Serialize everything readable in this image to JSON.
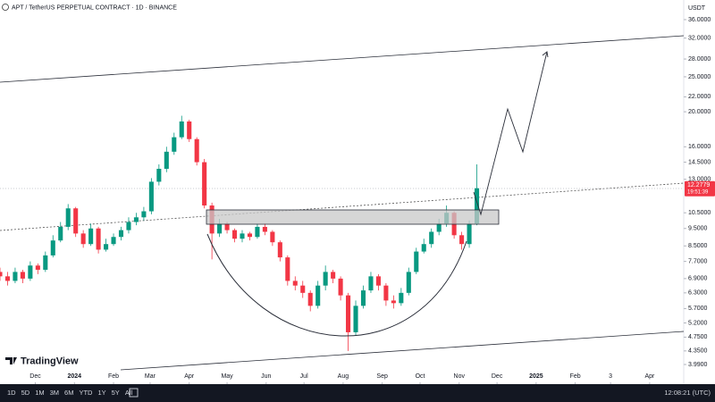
{
  "chart_data": {
    "type": "candlestick",
    "title": "APT / TetherUS PERPETUAL CONTRACT · 1D · BINANCE",
    "ylabel": "USDT",
    "log_scale": true,
    "grid": false,
    "up_color": "#089981",
    "down_color": "#f23645",
    "xlim": [
      -28,
      514
    ],
    "ylim": [
      3.56,
      40.8
    ],
    "xticks": [
      {
        "value": 0,
        "label": "Dec"
      },
      {
        "value": 31,
        "label": "2024"
      },
      {
        "value": 62,
        "label": "Feb"
      },
      {
        "value": 91,
        "label": "Mar"
      },
      {
        "value": 122,
        "label": "Apr"
      },
      {
        "value": 152,
        "label": "May"
      },
      {
        "value": 183,
        "label": "Jun"
      },
      {
        "value": 213,
        "label": "Jul"
      },
      {
        "value": 244,
        "label": "Aug"
      },
      {
        "value": 275,
        "label": "Sep"
      },
      {
        "value": 305,
        "label": "Oct"
      },
      {
        "value": 336,
        "label": "Nov"
      },
      {
        "value": 366,
        "label": "Dec"
      },
      {
        "value": 397,
        "label": "2025"
      },
      {
        "value": 428,
        "label": "Feb"
      },
      {
        "value": 456,
        "label": "3"
      },
      {
        "value": 487,
        "label": "Apr"
      }
    ],
    "yticks": [
      {
        "value": 3.99,
        "label": "3.9900"
      },
      {
        "value": 4.35,
        "label": "4.3500"
      },
      {
        "value": 4.75,
        "label": "4.7500"
      },
      {
        "value": 5.2,
        "label": "5.2000"
      },
      {
        "value": 5.7,
        "label": "5.7000"
      },
      {
        "value": 6.3,
        "label": "6.3000"
      },
      {
        "value": 6.9,
        "label": "6.9000"
      },
      {
        "value": 7.7,
        "label": "7.7000"
      },
      {
        "value": 8.5,
        "label": "8.5000"
      },
      {
        "value": 9.5,
        "label": "9.5000"
      },
      {
        "value": 10.5,
        "label": "10.5000"
      },
      {
        "value": 13,
        "label": "13.0000"
      },
      {
        "value": 14.5,
        "label": "14.5000"
      },
      {
        "value": 16,
        "label": "16.0000"
      },
      {
        "value": 20,
        "label": "20.0000"
      },
      {
        "value": 22,
        "label": "22.0000"
      },
      {
        "value": 25,
        "label": "25.0000"
      },
      {
        "value": 28,
        "label": "28.0000"
      },
      {
        "value": 32,
        "label": "32.0000"
      },
      {
        "value": 36,
        "label": "36.0000"
      }
    ],
    "last_price": 12.2779,
    "countdown": "19:51:39",
    "x": [
      -28,
      -22,
      -16,
      -10,
      -4,
      2,
      8,
      14,
      20,
      26,
      32,
      38,
      44,
      50,
      56,
      62,
      68,
      74,
      80,
      86,
      92,
      98,
      104,
      110,
      116,
      122,
      128,
      134,
      140,
      146,
      152,
      158,
      164,
      170,
      176,
      182,
      188,
      194,
      200,
      206,
      212,
      218,
      224,
      230,
      236,
      242,
      248,
      254,
      260,
      266,
      272,
      278,
      284,
      290,
      296,
      302,
      308,
      314,
      320,
      326,
      332,
      338,
      344,
      350
    ],
    "open": [
      7.2,
      7.0,
      6.8,
      7.2,
      6.9,
      7.5,
      7.3,
      8.0,
      8.8,
      9.6,
      10.8,
      9.2,
      8.6,
      9.5,
      8.3,
      8.6,
      9.0,
      9.4,
      9.9,
      10.2,
      10.6,
      12.8,
      13.9,
      15.5,
      17.0,
      18.8,
      16.8,
      14.5,
      11.0,
      9.2,
      9.8,
      9.4,
      8.9,
      9.2,
      9.0,
      9.6,
      9.3,
      8.7,
      7.9,
      6.8,
      6.6,
      6.3,
      5.8,
      6.6,
      7.2,
      6.9,
      6.2,
      4.9,
      5.8,
      6.4,
      7.0,
      6.6,
      6.0,
      5.9,
      6.3,
      7.2,
      8.2,
      8.6,
      9.3,
      9.8,
      10.5,
      9.1,
      8.6,
      9.8
    ],
    "high": [
      7.4,
      7.2,
      7.4,
      7.3,
      7.7,
      7.6,
      8.2,
      9.1,
      9.9,
      11.1,
      10.9,
      9.4,
      9.8,
      9.6,
      8.9,
      9.2,
      9.6,
      10.2,
      10.5,
      10.9,
      13.1,
      14.3,
      16.0,
      17.5,
      19.5,
      19.0,
      17.0,
      14.8,
      11.2,
      10.1,
      9.9,
      9.5,
      9.4,
      9.3,
      9.8,
      9.8,
      9.4,
      8.8,
      8.0,
      7.0,
      6.8,
      6.4,
      6.8,
      7.5,
      7.3,
      7.0,
      6.3,
      6.0,
      6.6,
      7.2,
      7.1,
      6.7,
      6.2,
      6.5,
      7.4,
      8.4,
      8.9,
      9.5,
      10.1,
      11.0,
      10.6,
      9.3,
      10.0,
      14.3
    ],
    "low": [
      6.8,
      6.6,
      6.7,
      6.7,
      6.8,
      7.1,
      7.2,
      7.9,
      8.7,
      9.4,
      9.0,
      8.4,
      8.5,
      8.1,
      8.2,
      8.5,
      8.8,
      9.2,
      9.7,
      10.0,
      10.4,
      12.5,
      13.6,
      15.2,
      16.8,
      16.5,
      14.2,
      10.8,
      7.8,
      9.0,
      9.2,
      8.7,
      8.7,
      8.8,
      8.9,
      9.1,
      8.5,
      7.7,
      6.6,
      6.4,
      6.1,
      5.6,
      5.7,
      6.4,
      6.7,
      6.0,
      4.35,
      4.8,
      5.7,
      6.3,
      6.4,
      5.8,
      5.7,
      5.8,
      6.2,
      7.1,
      8.1,
      8.4,
      9.1,
      9.6,
      8.9,
      8.3,
      8.4,
      9.7
    ],
    "close": [
      7.0,
      6.8,
      7.2,
      6.9,
      7.5,
      7.3,
      8.0,
      8.8,
      9.6,
      10.8,
      9.2,
      8.6,
      9.5,
      8.3,
      8.6,
      9.0,
      9.4,
      9.9,
      10.2,
      10.6,
      12.8,
      13.9,
      15.5,
      17.0,
      18.8,
      16.8,
      14.5,
      11.0,
      9.2,
      9.8,
      9.4,
      8.9,
      9.2,
      9.0,
      9.6,
      9.3,
      8.7,
      7.9,
      6.8,
      6.6,
      6.3,
      5.8,
      6.6,
      7.2,
      6.9,
      6.2,
      4.9,
      5.8,
      6.4,
      7.0,
      6.6,
      6.0,
      5.9,
      6.3,
      7.2,
      8.2,
      8.6,
      9.3,
      9.8,
      10.5,
      9.1,
      8.6,
      9.8,
      12.28
    ]
  },
  "ui": {
    "brand": "TradingView",
    "ranges": [
      "1D",
      "5D",
      "1M",
      "3M",
      "6M",
      "YTD",
      "1Y",
      "5Y",
      "All"
    ],
    "clock": "12:08:21 (UTC)"
  }
}
